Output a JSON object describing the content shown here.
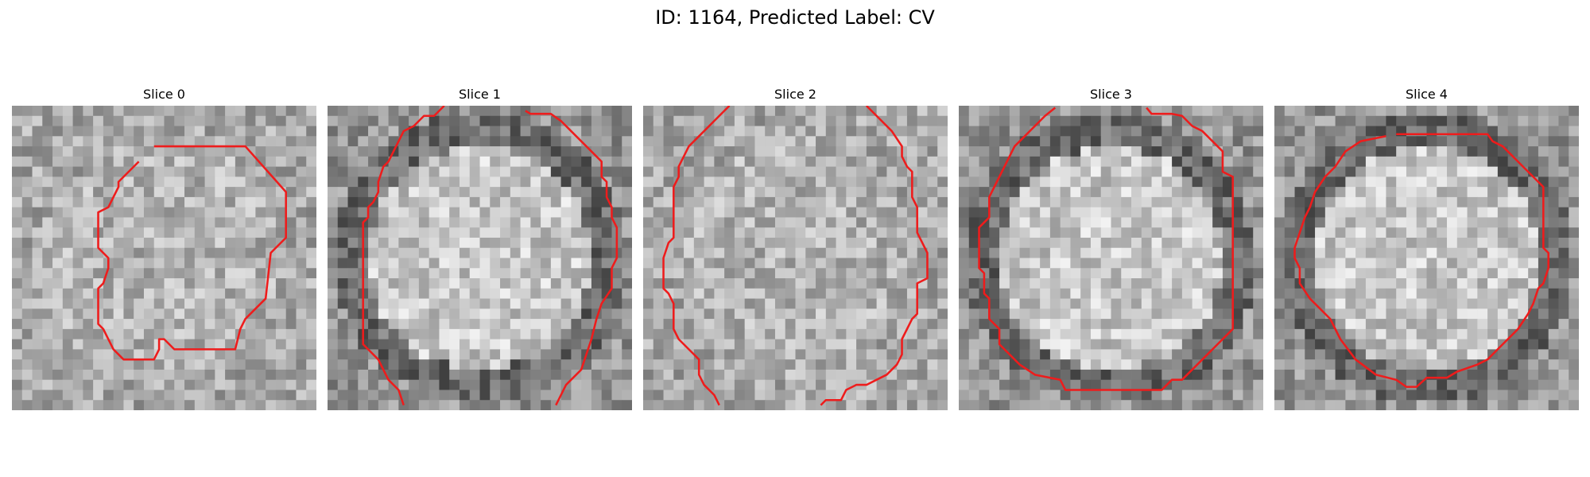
{
  "figure": {
    "title": "ID: 1164, Predicted Label: CV"
  },
  "colors": {
    "contour": "#ee1c1c"
  },
  "slices": [
    {
      "label": "Slice 0",
      "seed": 11,
      "dark_ring": false
    },
    {
      "label": "Slice 1",
      "seed": 23,
      "dark_ring": true
    },
    {
      "label": "Slice 2",
      "seed": 37,
      "dark_ring": false
    },
    {
      "label": "Slice 3",
      "seed": 51,
      "dark_ring": true
    },
    {
      "label": "Slice 4",
      "seed": 73,
      "dark_ring": true
    }
  ]
}
